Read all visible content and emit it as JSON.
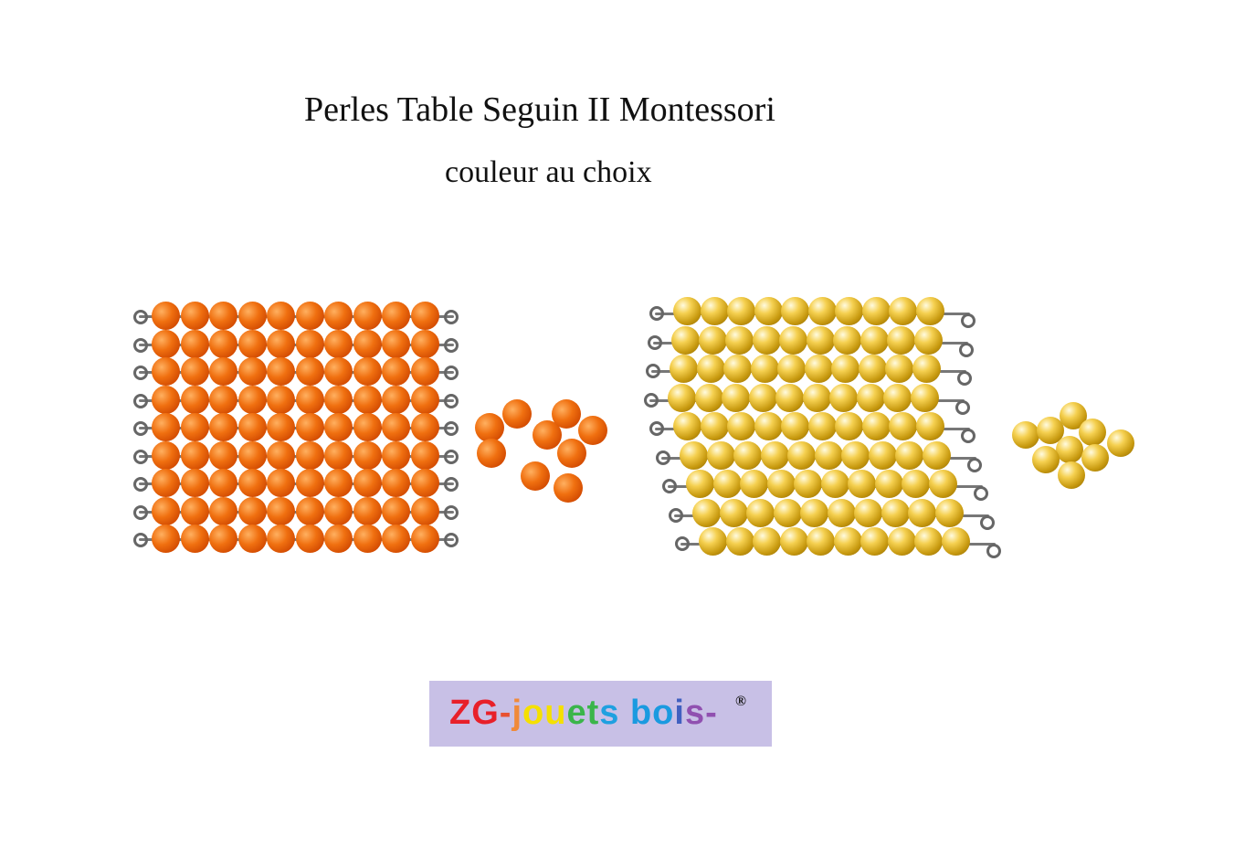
{
  "title": "Perles Table Seguin II Montessori",
  "subtitle": "couleur au choix",
  "products": [
    {
      "color_name": "orange",
      "color": "#f07010",
      "strands": 9,
      "beads_per_strand": 10,
      "loose_beads": 9
    },
    {
      "color_name": "gold",
      "color": "#d4a820",
      "strands": 9,
      "beads_per_strand": 10,
      "loose_beads": 9
    }
  ],
  "logo": {
    "text": "ZG-jouets bois-",
    "registered": "®",
    "background": "#c8c0e6",
    "letter_colors": [
      "#e8202a",
      "#e8202a",
      "#e85030",
      "#f08a3a",
      "#f5e000",
      "#f5e000",
      "#3ab54a",
      "#3ab54a",
      "#1fa0e0",
      "#ffffff",
      "#1a9ae0",
      "#1a9ae0",
      "#4060c0",
      "#9050b0",
      "#9050b0"
    ]
  }
}
